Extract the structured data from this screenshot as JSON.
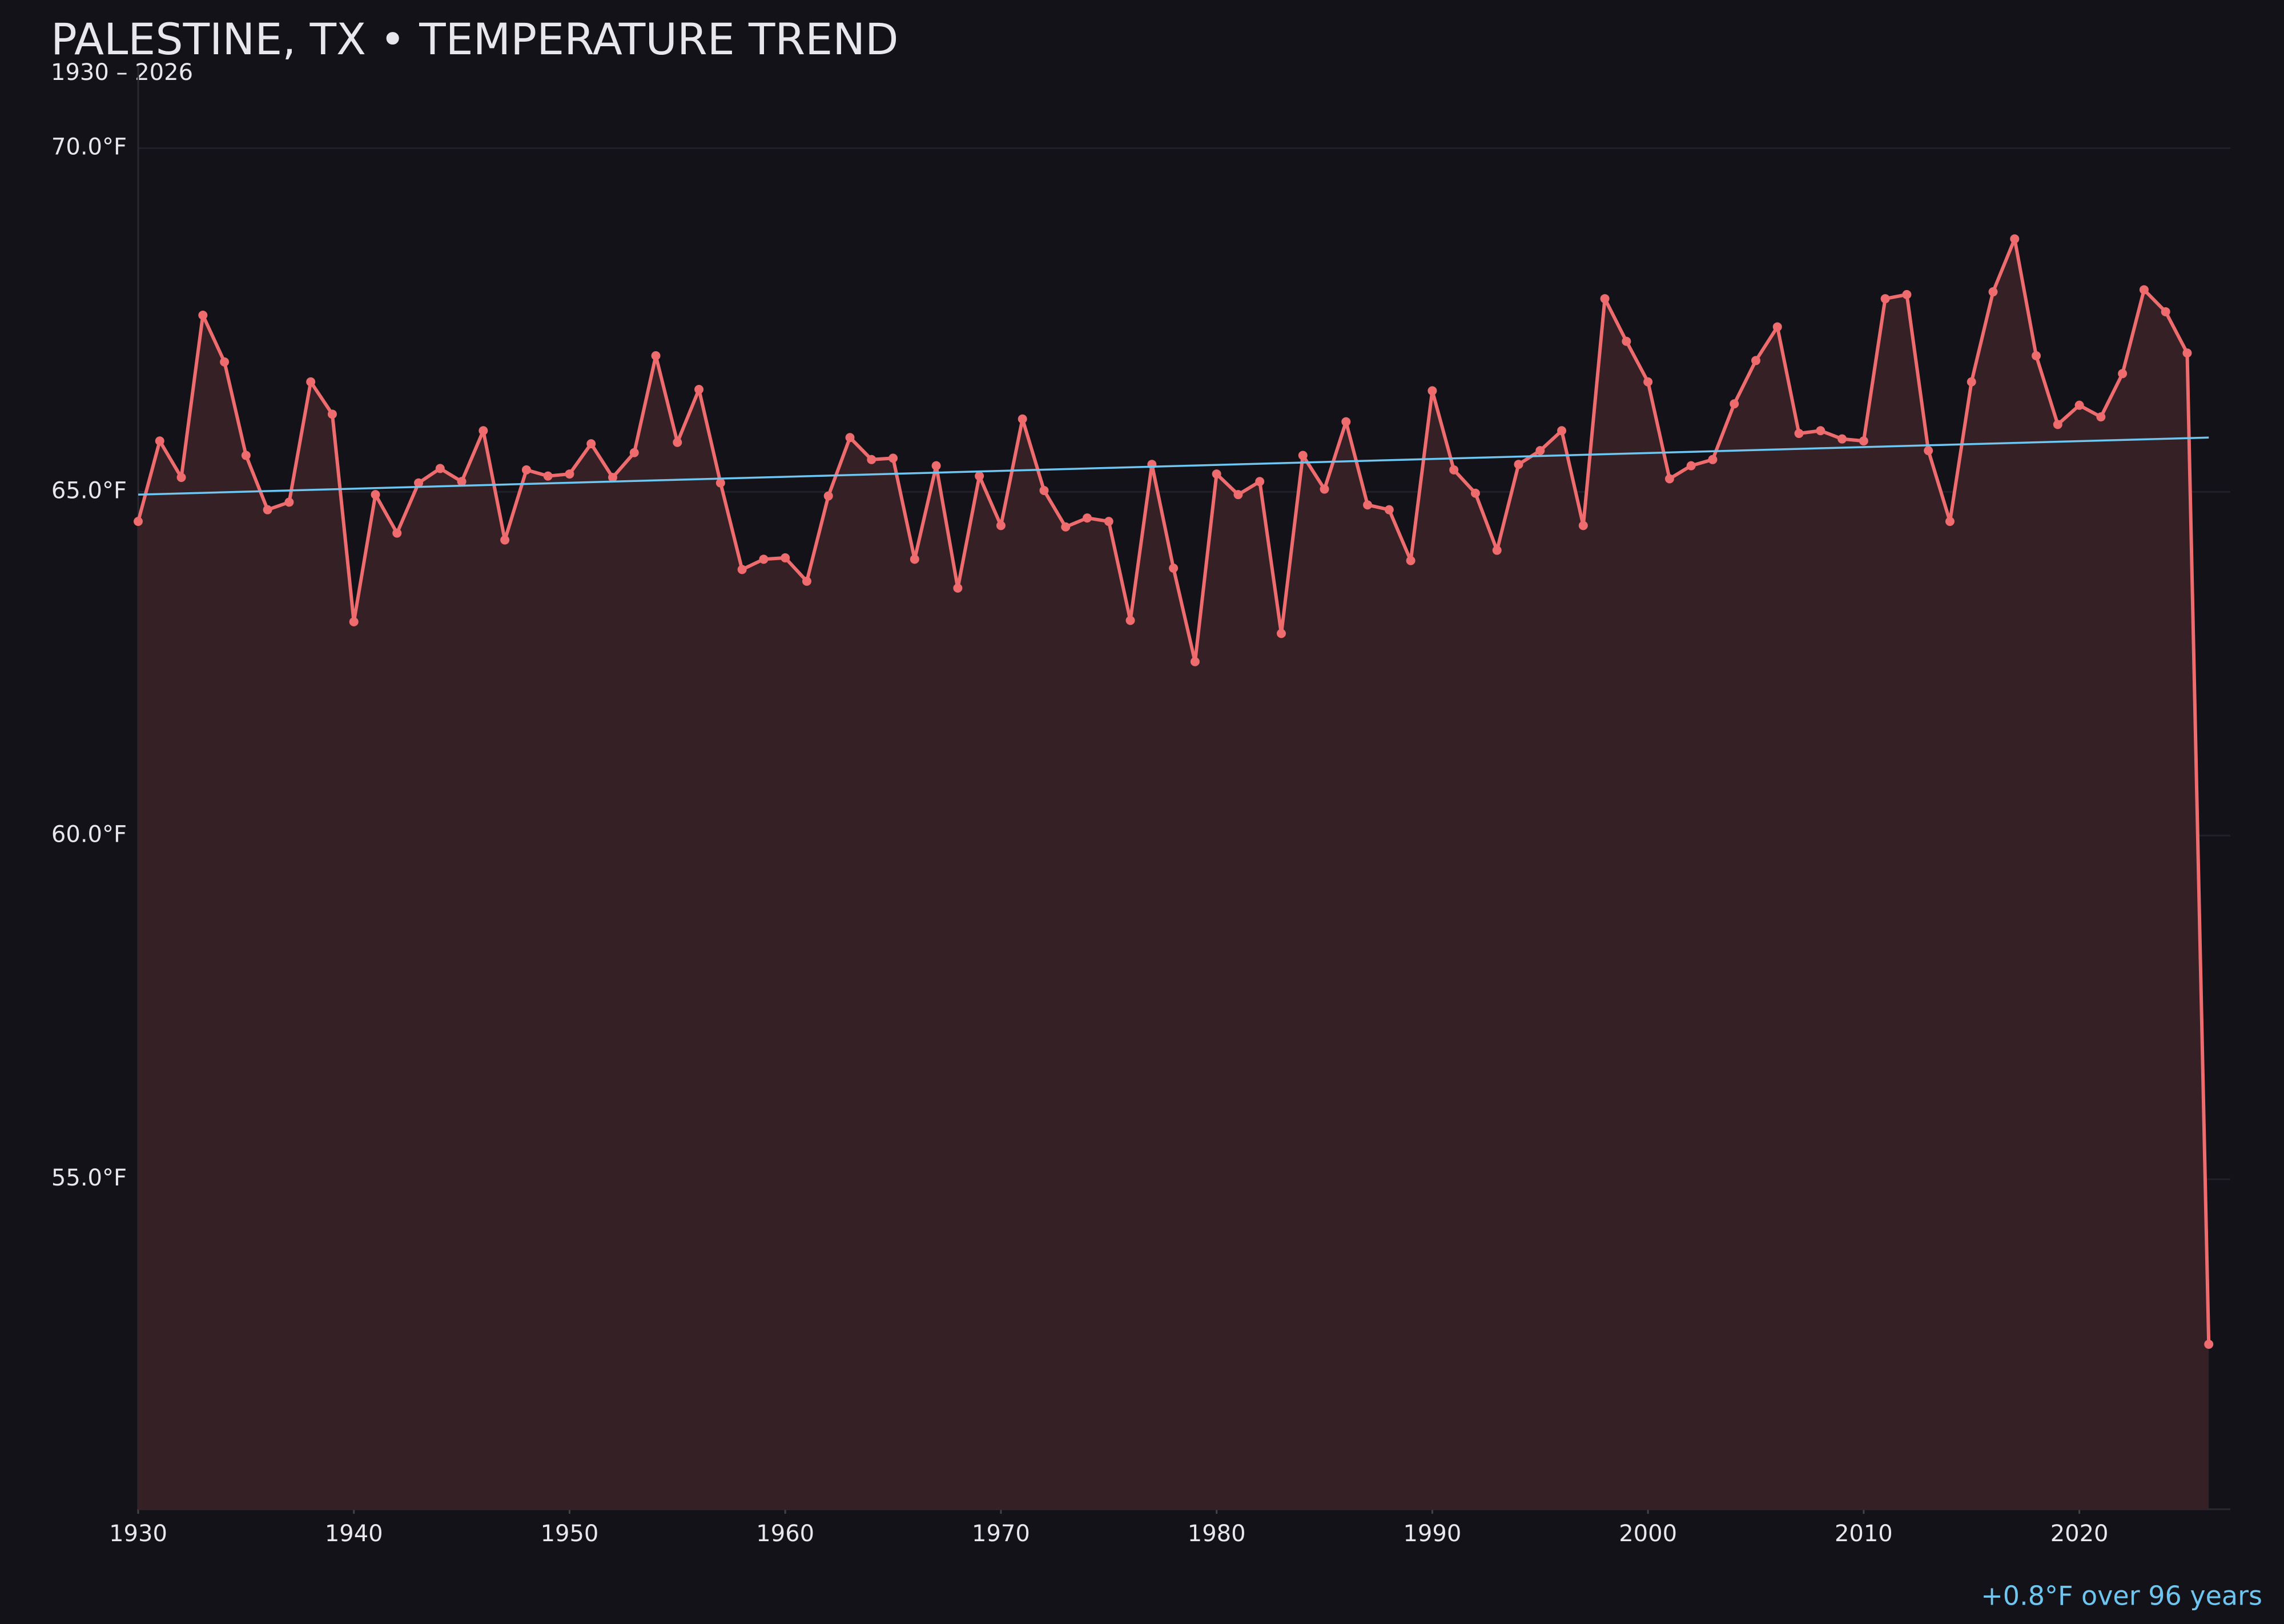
{
  "chart_data": {
    "type": "line",
    "title": "PALESTINE, TX • TEMPERATURE TREND",
    "subtitle": "1930 – 2026",
    "annotation": "+0.8°F over 96 years",
    "x": [
      1930,
      1931,
      1932,
      1933,
      1934,
      1935,
      1936,
      1937,
      1938,
      1939,
      1940,
      1941,
      1942,
      1943,
      1944,
      1945,
      1946,
      1947,
      1948,
      1949,
      1950,
      1951,
      1952,
      1953,
      1954,
      1955,
      1956,
      1957,
      1958,
      1959,
      1960,
      1961,
      1962,
      1963,
      1964,
      1965,
      1966,
      1967,
      1968,
      1969,
      1970,
      1971,
      1972,
      1973,
      1974,
      1975,
      1976,
      1977,
      1978,
      1979,
      1980,
      1981,
      1982,
      1983,
      1984,
      1985,
      1986,
      1987,
      1988,
      1989,
      1990,
      1991,
      1992,
      1993,
      1994,
      1995,
      1996,
      1997,
      1998,
      1999,
      2000,
      2001,
      2002,
      2003,
      2004,
      2005,
      2006,
      2007,
      2008,
      2009,
      2010,
      2011,
      2012,
      2013,
      2014,
      2015,
      2016,
      2017,
      2018,
      2019,
      2020,
      2021,
      2022,
      2023,
      2024,
      2025,
      2026
    ],
    "series": [
      {
        "color": "#ee6b6e",
        "fill": "#352026",
        "values": [
          64.57,
          65.74,
          65.21,
          67.57,
          66.89,
          65.53,
          64.74,
          64.85,
          66.6,
          66.13,
          63.11,
          64.96,
          64.4,
          65.13,
          65.34,
          65.15,
          65.89,
          64.3,
          65.32,
          65.23,
          65.26,
          65.7,
          65.21,
          65.57,
          66.98,
          65.72,
          66.49,
          65.13,
          63.87,
          64.02,
          64.04,
          63.7,
          64.94,
          65.79,
          65.47,
          65.49,
          64.02,
          65.38,
          63.6,
          65.23,
          64.51,
          66.06,
          65.02,
          64.49,
          64.62,
          64.57,
          63.13,
          65.4,
          63.89,
          62.53,
          65.26,
          64.96,
          65.15,
          62.94,
          65.53,
          65.04,
          66.02,
          64.81,
          64.74,
          64.0,
          66.47,
          65.32,
          64.98,
          64.15,
          65.4,
          65.6,
          65.89,
          64.51,
          67.81,
          67.19,
          66.6,
          65.19,
          65.38,
          65.47,
          66.28,
          66.91,
          67.4,
          65.85,
          65.89,
          65.77,
          65.74,
          67.81,
          67.87,
          65.6,
          64.57,
          66.6,
          67.91,
          68.68,
          66.98,
          65.98,
          66.26,
          66.09,
          66.72,
          67.94,
          67.62,
          67.02,
          52.6
        ]
      },
      {
        "color": "#6ec6f0",
        "x": [
          1930,
          2026
        ],
        "values": [
          64.96,
          65.79
        ]
      }
    ],
    "xlim": [
      1930,
      2027
    ],
    "ylim": [
      50.2,
      71.2
    ],
    "xticks": [
      1930,
      1940,
      1950,
      1960,
      1970,
      1980,
      1990,
      2000,
      2010,
      2020
    ],
    "yticks": [
      {
        "value": 55,
        "label": "55.0°F"
      },
      {
        "value": 60,
        "label": "60.0°F"
      },
      {
        "value": 65,
        "label": "65.0°F"
      },
      {
        "value": 70,
        "label": "70.0°F"
      }
    ],
    "grid": true
  }
}
